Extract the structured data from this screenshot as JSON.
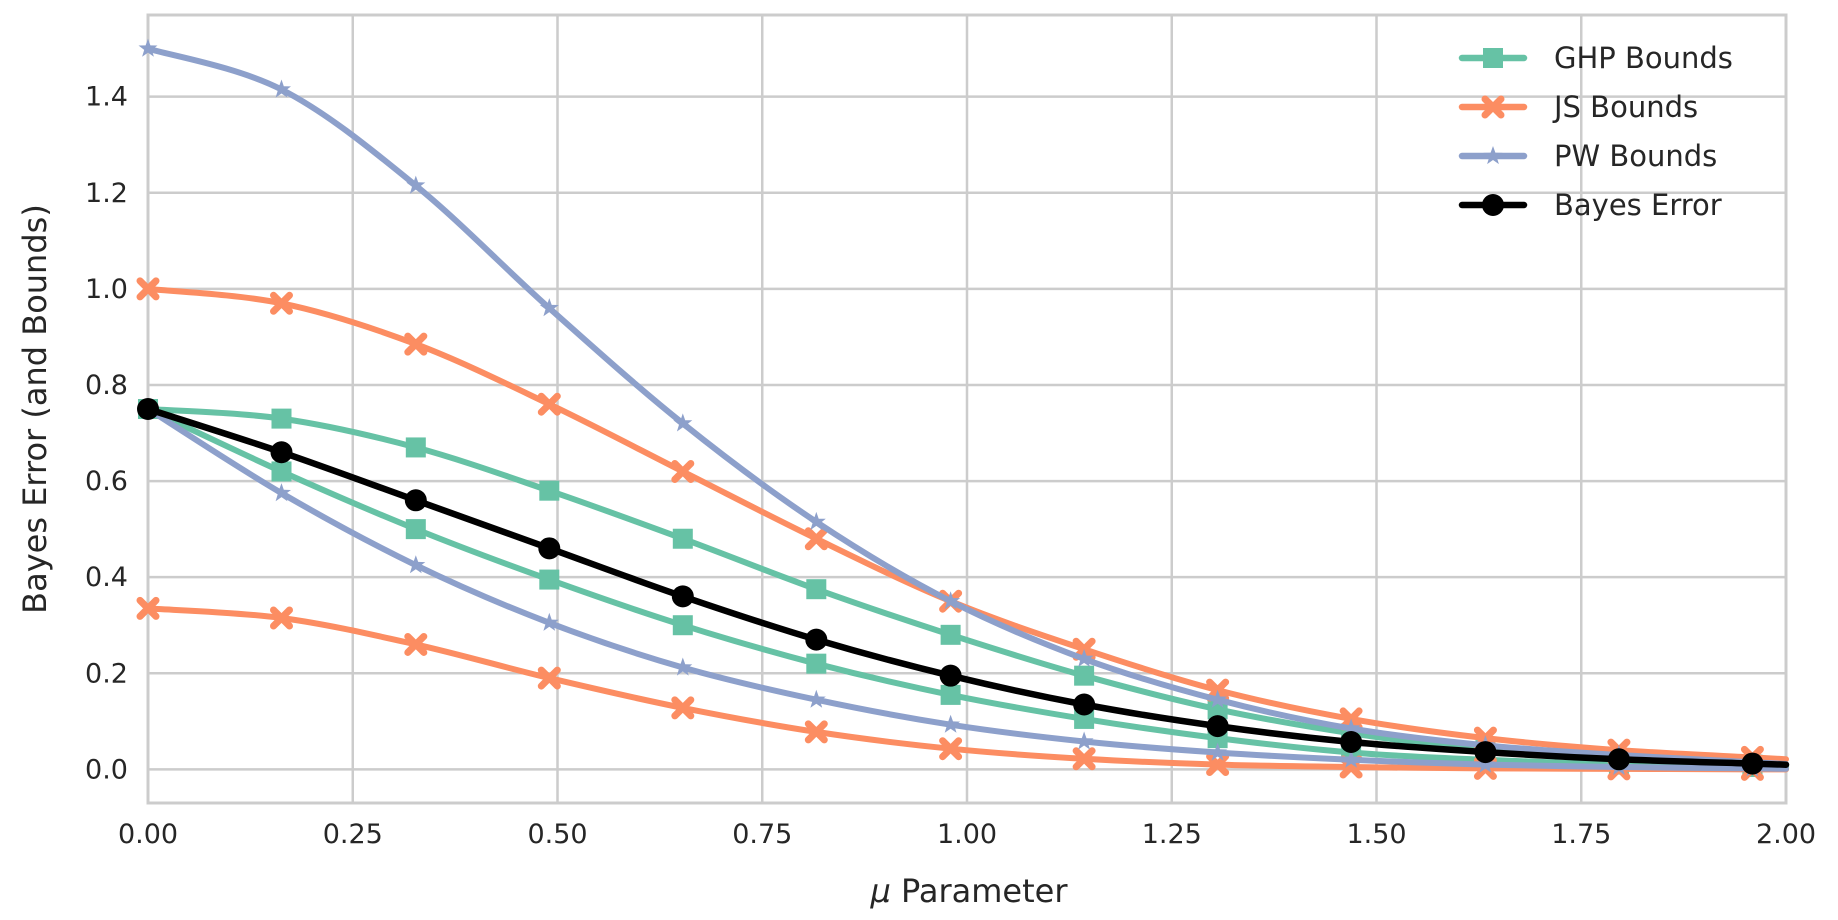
{
  "chart_data": {
    "type": "line",
    "title": "",
    "xlabel_symbol": "μ",
    "xlabel": "Parameter",
    "ylabel": "Bayes Error (and Bounds)",
    "xlim": [
      0.0,
      2.0
    ],
    "ylim": [
      -0.07,
      1.57
    ],
    "xticks": [
      "0.00",
      "0.25",
      "0.50",
      "0.75",
      "1.00",
      "1.25",
      "1.50",
      "1.75",
      "2.00"
    ],
    "yticks": [
      "0.0",
      "0.2",
      "0.4",
      "0.6",
      "0.8",
      "1.0",
      "1.2",
      "1.4"
    ],
    "grid": true,
    "legend_position": "top-right",
    "legend": [
      "GHP Bounds",
      "JS Bounds",
      "PW Bounds",
      "Bayes Error"
    ],
    "colors": {
      "ghp": "#66c2a5",
      "js": "#fc8d62",
      "pw": "#8da0cb",
      "bayes": "#000000",
      "grid": "#cccccc",
      "text": "#262626"
    },
    "x_markers": [
      0.0,
      0.163,
      0.327,
      0.49,
      0.653,
      0.816,
      0.98,
      1.143,
      1.306,
      1.469,
      1.633,
      1.796,
      1.959
    ],
    "series": [
      {
        "group": "GHP Bounds",
        "marker": "square",
        "values": [
          0.75,
          0.73,
          0.67,
          0.58,
          0.48,
          0.375,
          0.28,
          0.195,
          0.125,
          0.075,
          0.04,
          0.02,
          0.01
        ]
      },
      {
        "group": "GHP Bounds",
        "marker": "square",
        "values": [
          0.75,
          0.62,
          0.5,
          0.395,
          0.3,
          0.22,
          0.155,
          0.105,
          0.065,
          0.035,
          0.02,
          0.01,
          0.005
        ]
      },
      {
        "group": "JS Bounds",
        "marker": "x",
        "values": [
          1.0,
          0.97,
          0.885,
          0.76,
          0.62,
          0.48,
          0.35,
          0.25,
          0.165,
          0.105,
          0.065,
          0.04,
          0.025
        ]
      },
      {
        "group": "JS Bounds",
        "marker": "x",
        "values": [
          0.335,
          0.315,
          0.26,
          0.19,
          0.128,
          0.078,
          0.043,
          0.022,
          0.01,
          0.005,
          0.002,
          0.001,
          0.0
        ]
      },
      {
        "group": "PW Bounds",
        "marker": "star",
        "values": [
          1.5,
          1.415,
          1.215,
          0.96,
          0.72,
          0.515,
          0.35,
          0.23,
          0.145,
          0.085,
          0.05,
          0.03,
          0.015
        ]
      },
      {
        "group": "PW Bounds",
        "marker": "star",
        "values": [
          0.75,
          0.575,
          0.425,
          0.305,
          0.212,
          0.145,
          0.093,
          0.058,
          0.035,
          0.02,
          0.01,
          0.005,
          0.002
        ]
      },
      {
        "group": "Bayes Error",
        "marker": "circle",
        "values": [
          0.75,
          0.66,
          0.56,
          0.46,
          0.36,
          0.27,
          0.195,
          0.135,
          0.09,
          0.057,
          0.036,
          0.021,
          0.012
        ]
      }
    ]
  }
}
